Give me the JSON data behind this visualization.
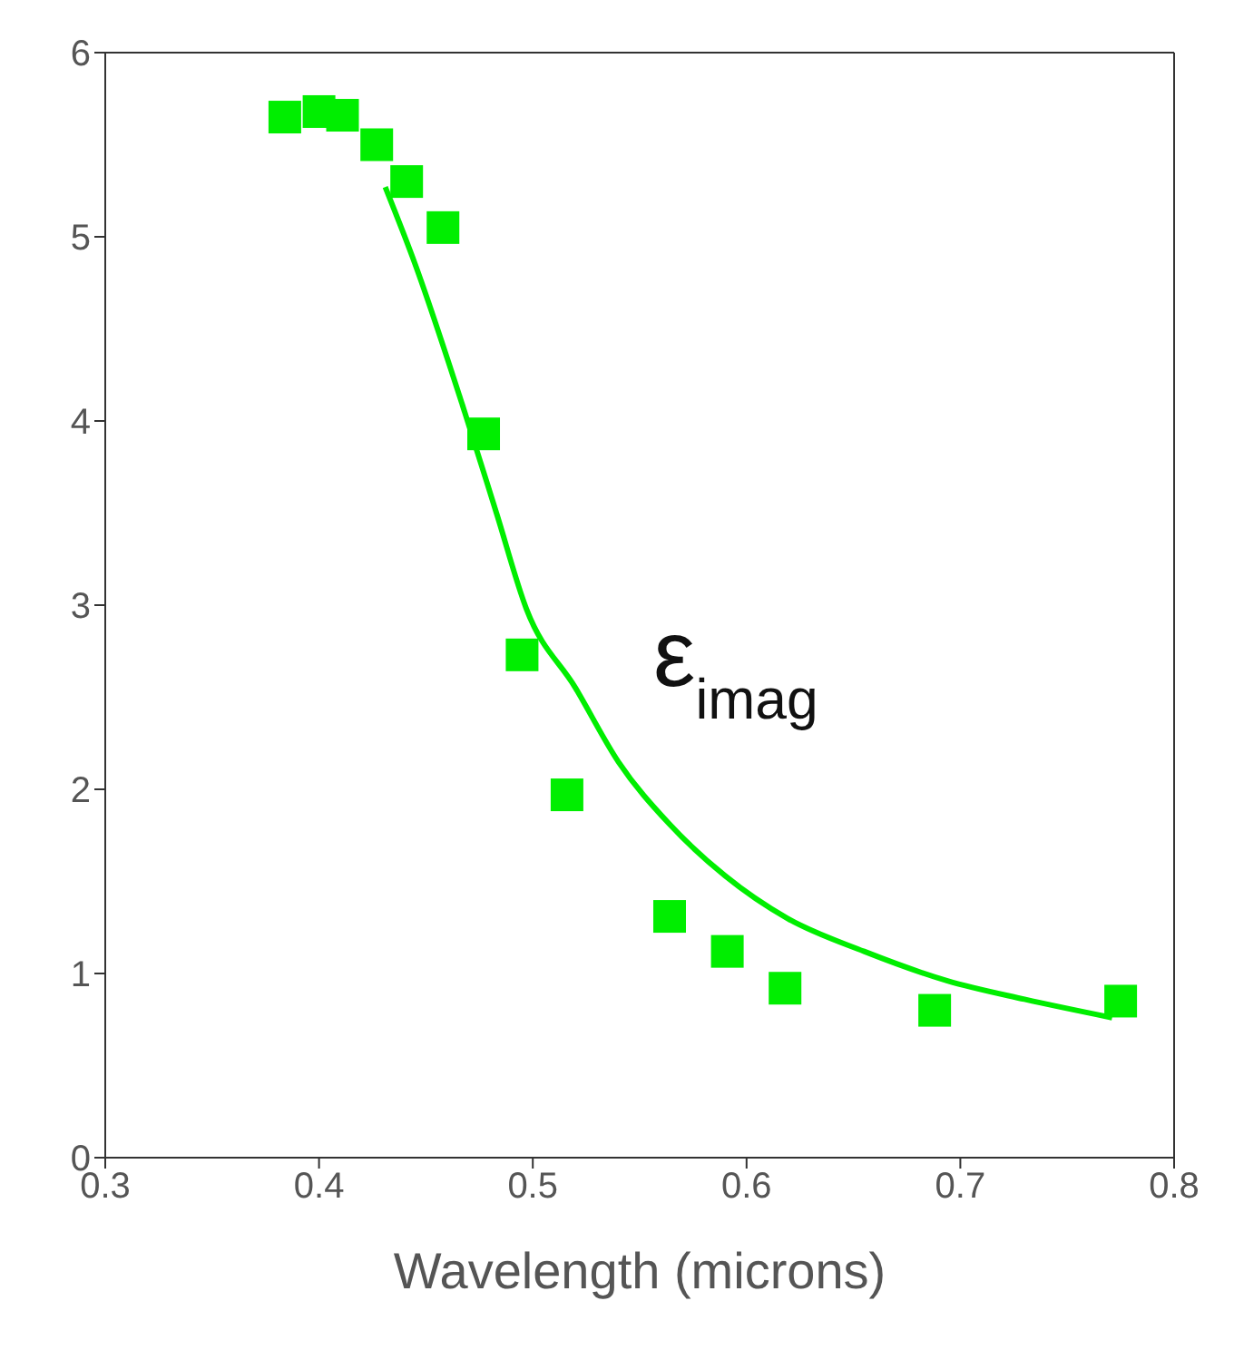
{
  "chart_data": {
    "type": "scatter",
    "xlabel": "Wavelength  (microns)",
    "xlim": [
      0.3,
      0.8
    ],
    "xticks": [
      0.3,
      0.4,
      0.5,
      0.6,
      0.7,
      0.8
    ],
    "ylim": [
      0,
      6
    ],
    "yticks": [
      0,
      1,
      2,
      3,
      4,
      5,
      6
    ],
    "annotations": [
      "ε$_{imag}$"
    ],
    "series": [
      {
        "marker": "square",
        "color": "#00ee00",
        "x": [
          0.384,
          0.4,
          0.411,
          0.427,
          0.441,
          0.458,
          0.477,
          0.495,
          0.516,
          0.564,
          0.591,
          0.618,
          0.688,
          0.775
        ],
        "values": [
          5.65,
          5.68,
          5.66,
          5.5,
          5.3,
          5.05,
          3.93,
          2.73,
          1.97,
          1.31,
          1.12,
          0.92,
          0.8,
          0.85
        ]
      },
      {
        "type": "line",
        "marker": "none",
        "color": "#00ee00",
        "x": [
          0.431,
          0.445,
          0.467,
          0.483,
          0.497,
          0.52,
          0.54,
          0.564,
          0.59,
          0.619,
          0.655,
          0.694,
          0.73,
          0.771
        ],
        "values": [
          5.27,
          4.85,
          4.09,
          3.5,
          2.98,
          2.55,
          2.15,
          1.81,
          1.53,
          1.3,
          1.12,
          0.96,
          0.86,
          0.76
        ]
      }
    ]
  }
}
